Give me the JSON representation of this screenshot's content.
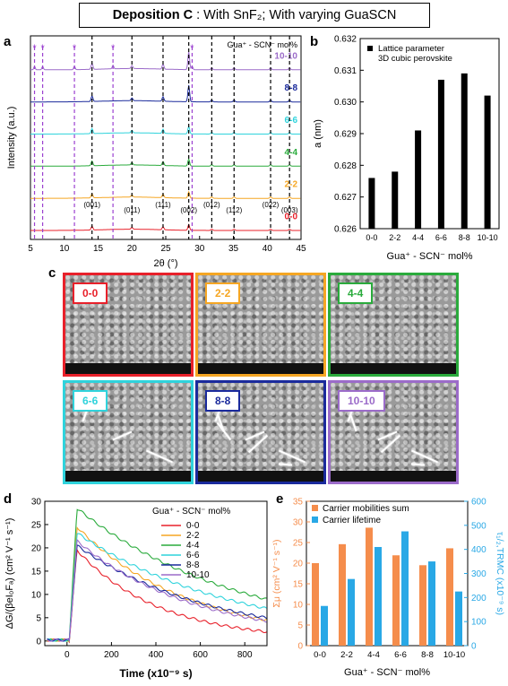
{
  "title": {
    "prefix": "Deposition C",
    "rest": ": With SnF₂; With varying GuaSCN"
  },
  "colors": {
    "c00": "#e8202a",
    "c22": "#f5a623",
    "c44": "#2aab3c",
    "c66": "#2fd3dc",
    "c88": "#1a2a9c",
    "c1010": "#9b6bc9",
    "orange": "#f58d4c",
    "blue": "#29a8e6"
  },
  "panels": {
    "a": "a",
    "b": "b",
    "c": "c",
    "d": "d",
    "e": "e"
  },
  "chart_data": [
    {
      "panel": "a",
      "type": "line",
      "xlabel": "2θ (°)",
      "ylabel": "Intensity (a.u.)",
      "xlim": [
        5,
        45
      ],
      "xticks": [
        5,
        10,
        15,
        20,
        25,
        30,
        35,
        40,
        45
      ],
      "legend_title": "Gua⁺ - SCN⁻ mol%",
      "series": [
        {
          "name": "0-0",
          "color": "#e8202a"
        },
        {
          "name": "2-2",
          "color": "#f5a623"
        },
        {
          "name": "4-4",
          "color": "#2aab3c"
        },
        {
          "name": "6-6",
          "color": "#2fd3dc"
        },
        {
          "name": "8-8",
          "color": "#1a2a9c"
        },
        {
          "name": "10-10",
          "color": "#9b6bc9"
        }
      ],
      "peaks": [
        14.1,
        20.0,
        24.6,
        28.4,
        31.8,
        35.1,
        40.5,
        43.3
      ],
      "peak_labels": [
        {
          "x": 14.1,
          "label": "(001)"
        },
        {
          "x": 20.0,
          "label": "(011)"
        },
        {
          "x": 24.6,
          "label": "(111)"
        },
        {
          "x": 28.4,
          "label": "(002)"
        },
        {
          "x": 31.8,
          "label": "(012)"
        },
        {
          "x": 35.1,
          "label": "(112)"
        },
        {
          "x": 40.5,
          "label": "(022)"
        },
        {
          "x": 43.3,
          "label": "(003)"
        }
      ],
      "star_positions": [
        5.6,
        6.8,
        11.5,
        17.2,
        28.9
      ],
      "star_symbol": "*"
    },
    {
      "panel": "b",
      "type": "bar",
      "categories": [
        "0-0",
        "2-2",
        "4-4",
        "6-6",
        "8-8",
        "10-10"
      ],
      "values": [
        0.6276,
        0.6278,
        0.6291,
        0.6307,
        0.6309,
        0.6302
      ],
      "ylabel": "a (nm)",
      "xlabel": "Gua⁺ - SCN⁻ mol%",
      "ylim": [
        0.626,
        0.632
      ],
      "yticks": [
        "0.626",
        "0.627",
        "0.628",
        "0.629",
        "0.630",
        "0.631",
        "0.632"
      ],
      "legend": [
        "Lattice parameter",
        "3D cubic perovskite"
      ]
    },
    {
      "panel": "d",
      "type": "line",
      "xlabel": "Time (x10⁻⁹ s)",
      "ylabel": "ΔG/(βeI₀Fₐ) (cm² V⁻¹ s⁻¹)",
      "xlim": [
        -100,
        900
      ],
      "ylim": [
        -1,
        30
      ],
      "xticks": [
        0,
        200,
        400,
        600,
        800
      ],
      "yticks": [
        0,
        5,
        10,
        15,
        20,
        25,
        30
      ],
      "legend_title": "Gua⁺ - SCN⁻ mol%",
      "series": [
        {
          "name": "0-0",
          "color": "#e8202a",
          "peak": 19.5,
          "end": 2.0
        },
        {
          "name": "2-2",
          "color": "#f5a623",
          "peak": 24.5,
          "end": 4.5
        },
        {
          "name": "4-4",
          "color": "#2aab3c",
          "peak": 28.5,
          "end": 9.0
        },
        {
          "name": "6-6",
          "color": "#2fd3dc",
          "peak": 23.2,
          "end": 7.0
        },
        {
          "name": "8-8",
          "color": "#1a2a9c",
          "peak": 20.5,
          "end": 5.0
        },
        {
          "name": "10-10",
          "color": "#9b6bc9",
          "peak": 21.5,
          "end": 4.3
        }
      ]
    },
    {
      "panel": "e",
      "type": "bar",
      "categories": [
        "0-0",
        "2-2",
        "4-4",
        "6-6",
        "8-8",
        "10-10"
      ],
      "series": [
        {
          "name": "Carrier mobilities sum",
          "color": "#f58d4c",
          "axis": "left",
          "values": [
            20.0,
            24.6,
            28.6,
            21.9,
            19.5,
            23.6
          ]
        },
        {
          "name": "Carrier lifetime",
          "color": "#29a8e6",
          "axis": "right",
          "values": [
            165,
            277,
            410,
            475,
            350,
            225
          ]
        }
      ],
      "ylabel_left": "Σμ (cm² V⁻¹ s⁻¹)",
      "ylabel_right": "τ₁/₂,TRMC (x10⁻⁹ s)",
      "xlabel": "Gua⁺ - SCN⁻ mol%",
      "ylim_left": [
        0,
        35
      ],
      "ylim_right": [
        0,
        600
      ],
      "yticks_left": [
        0,
        5,
        10,
        15,
        20,
        25,
        30,
        35
      ],
      "yticks_right": [
        0,
        100,
        200,
        300,
        400,
        500,
        600
      ]
    }
  ],
  "sem": [
    {
      "label": "0-0",
      "color": "#e8202a"
    },
    {
      "label": "2-2",
      "color": "#f5a623"
    },
    {
      "label": "4-4",
      "color": "#2aab3c"
    },
    {
      "label": "6-6",
      "color": "#2fd3dc"
    },
    {
      "label": "8-8",
      "color": "#1a2a9c"
    },
    {
      "label": "10-10",
      "color": "#9b6bc9"
    }
  ]
}
